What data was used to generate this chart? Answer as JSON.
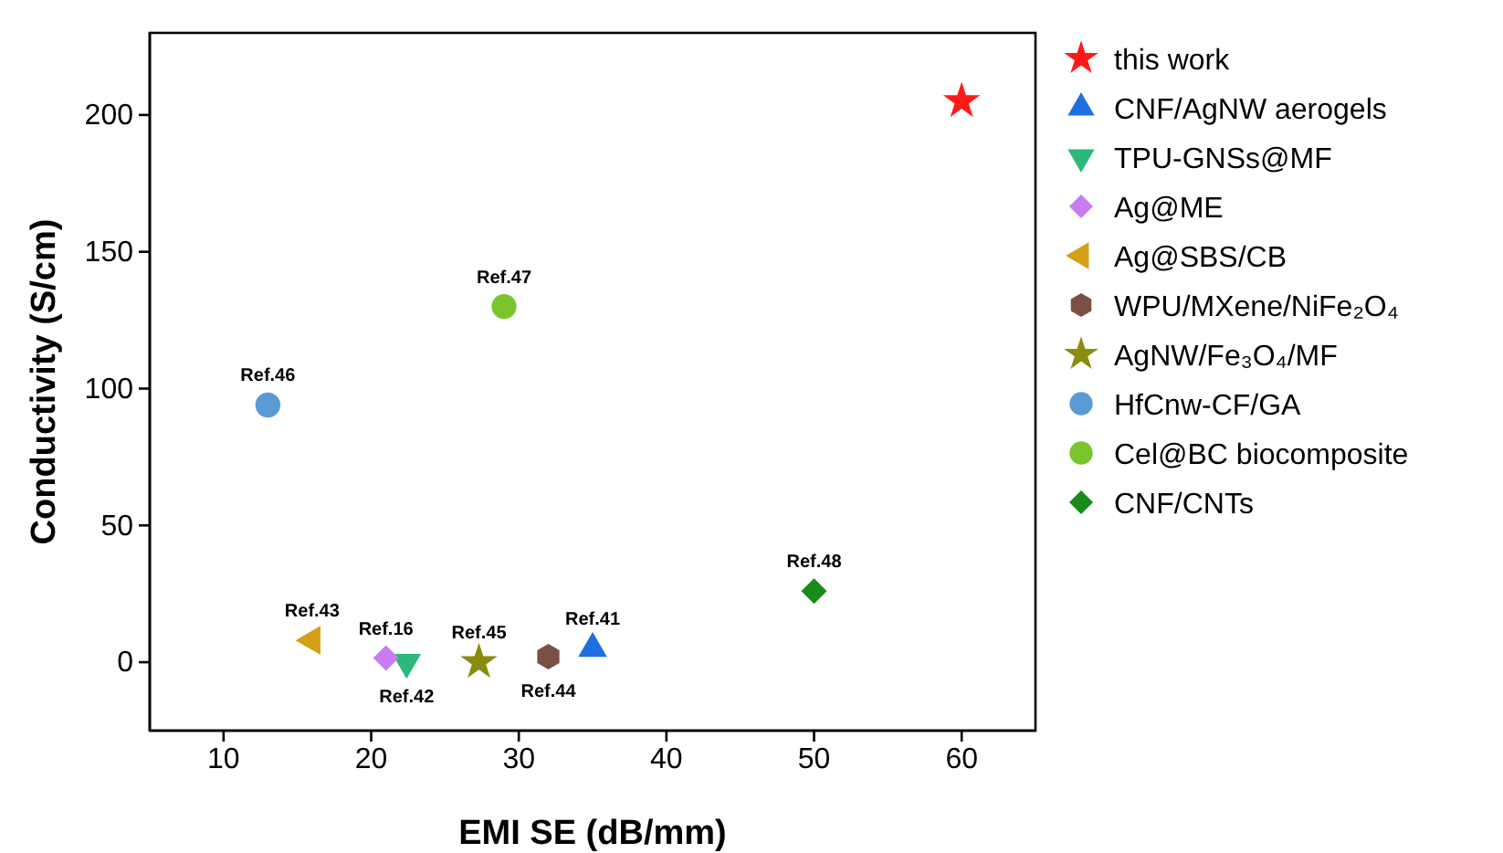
{
  "chart_data": {
    "type": "scatter",
    "xlabel": "EMI SE (dB/mm)",
    "ylabel": "Conductivity (S/cm)",
    "xlim": [
      5,
      65
    ],
    "xticks": [
      10,
      20,
      30,
      40,
      50,
      60
    ],
    "ylim": [
      -25,
      230
    ],
    "yticks": [
      0,
      50,
      100,
      150,
      200
    ],
    "legend": "right",
    "grid": false,
    "series": [
      {
        "name": "this work",
        "color": "#ff1a1a",
        "marker": "star",
        "x": [
          60
        ],
        "values": [
          205
        ]
      },
      {
        "name": "CNF/AgNW aerogels",
        "color": "#1f6fe0",
        "marker": "triangle",
        "x": [
          35
        ],
        "values": [
          5
        ]
      },
      {
        "name": "TPU-GNSs@MF",
        "color": "#2db87a",
        "marker": "triangle-down",
        "x": [
          22.4
        ],
        "values": [
          0
        ]
      },
      {
        "name": "Ag@ME",
        "color": "#c77df0",
        "marker": "diamond",
        "x": [
          21
        ],
        "values": [
          1.5
        ]
      },
      {
        "name": "Ag@SBS/CB",
        "color": "#d4a017",
        "marker": "triangle-left",
        "x": [
          16
        ],
        "values": [
          8
        ]
      },
      {
        "name": "WPU/MXene/NiFe₂O₄",
        "color": "#7a5045",
        "x": [
          32
        ],
        "values": [
          2
        ]
      },
      {
        "name": "AgNW/Fe₃O₄/MF",
        "color": "#8b8b10",
        "marker": "star",
        "x": [
          27.3
        ],
        "values": [
          0
        ]
      },
      {
        "name": "HfCnw-CF/GA",
        "color": "#5b9bd5",
        "marker": "circle",
        "x": [
          13
        ],
        "values": [
          94
        ]
      },
      {
        "name": "Cel@BC biocomposite",
        "color": "#7ac52e",
        "marker": "circle",
        "x": [
          29
        ],
        "values": [
          130
        ]
      },
      {
        "name": "CNF/CNTs",
        "color": "#1a8a1a",
        "marker": "diamond",
        "x": [
          50
        ],
        "values": [
          26
        ]
      }
    ],
    "annotations": [
      {
        "text": "Ref.41",
        "x": 35,
        "y": 5
      },
      {
        "text": "Ref.16",
        "x": 21,
        "y": 1.5
      },
      {
        "text": "Ref.42",
        "x": 22.4,
        "y": 0
      },
      {
        "text": "Ref.43",
        "x": 16,
        "y": 8
      },
      {
        "text": "Ref.44",
        "x": 32,
        "y": 2
      },
      {
        "text": "Ref.45",
        "x": 27.3,
        "y": 0
      },
      {
        "text": "Ref.46",
        "x": 13,
        "y": 94
      },
      {
        "text": "Ref.47",
        "x": 29,
        "y": 130
      },
      {
        "text": "Ref.48",
        "x": 50,
        "y": 26
      }
    ]
  }
}
